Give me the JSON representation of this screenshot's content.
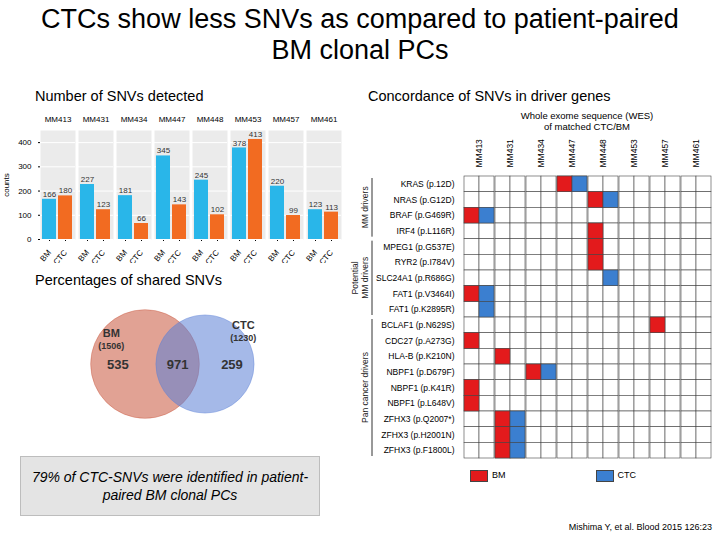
{
  "title": "CTCs show less SNVs as compared to patient-paired BM clonal PCs",
  "citation": "Mishima Y, et al. Blood 2015 126:23",
  "chart_data": [
    {
      "type": "bar",
      "title": "Number of SNVs detected",
      "categories": [
        "MM413",
        "MM431",
        "MM434",
        "MM447",
        "MM448",
        "MM453",
        "MM457",
        "MM461"
      ],
      "series": [
        {
          "name": "BM",
          "color": "#29b6e9",
          "values": [
            166,
            227,
            181,
            345,
            245,
            378,
            220,
            123
          ]
        },
        {
          "name": "CTC",
          "color": "#f26b21",
          "values": [
            180,
            123,
            66,
            143,
            102,
            413,
            99,
            113
          ]
        }
      ],
      "ylabel": "counts",
      "ylim": [
        0,
        450
      ],
      "yticks": [
        0,
        100,
        200,
        300,
        400
      ],
      "grid": true,
      "data_labels": true
    },
    {
      "type": "venn",
      "title": "Percentages of shared SNVs",
      "sets": [
        {
          "name": "BM",
          "size": 1506,
          "size_label": "(1506)",
          "color": "#c8553d"
        },
        {
          "name": "CTC",
          "size": 1230,
          "size_label": "(1230)",
          "color": "#5b80d6"
        }
      ],
      "only_first": 535,
      "shared": 971,
      "only_second": 259,
      "annotation": "79% of CTC-SNVs were identified in patient-paired BM clonal PCs"
    },
    {
      "type": "grid",
      "title": "Concordance of SNVs in driver genes",
      "subtitle": "Whole exome sequence (WES)\nof matched CTC/BM",
      "columns": [
        "MM413",
        "MM431",
        "MM434",
        "MM447",
        "MM448",
        "MM453",
        "MM457",
        "MM461"
      ],
      "rows": [
        "KRAS (p.12D)",
        "NRAS (p.G12D)",
        "BRAF (p.G469R)",
        "IRF4 (p.L116R)",
        "MPEG1 (p.G537E)",
        "RYR2 (p.I784V)",
        "SLC24A1 (p.R686G)",
        "FAT1 (p.V3464I)",
        "FAT1 (p.K2895R)",
        "BCLAF1 (p.N629S)",
        "CDC27 (p.A273G)",
        "HLA-B (p.K210N)",
        "NBPF1 (p.D679F)",
        "NBPF1 (p.K41R)",
        "NBPF1 (p.L648V)",
        "ZFHX3 (p.Q2007*)",
        "ZFHX3 (p.H2001N)",
        "ZFHX3 (p.F1800L)"
      ],
      "groups": [
        {
          "label": "MM drivers",
          "from": "KRAS (p.12D)",
          "to": "IRF4 (p.L116R)"
        },
        {
          "label": "Potential\nMM drivers",
          "from": "MPEG1 (p.G537E)",
          "to": "FAT1 (p.K2895R)"
        },
        {
          "label": "Pan cancer drivers",
          "from": "BCLAF1 (p.N629S)",
          "to": "ZFHX3 (p.F1800L)"
        }
      ],
      "series": [
        {
          "name": "BM",
          "color": "#e31a1c"
        },
        {
          "name": "CTC",
          "color": "#3b7fd0"
        }
      ],
      "cells": [
        {
          "row": "KRAS (p.12D)",
          "patient": "MM447",
          "sample": "BM"
        },
        {
          "row": "KRAS (p.12D)",
          "patient": "MM447",
          "sample": "CTC"
        },
        {
          "row": "NRAS (p.G12D)",
          "patient": "MM448",
          "sample": "BM"
        },
        {
          "row": "NRAS (p.G12D)",
          "patient": "MM448",
          "sample": "CTC"
        },
        {
          "row": "BRAF (p.G469R)",
          "patient": "MM413",
          "sample": "BM"
        },
        {
          "row": "BRAF (p.G469R)",
          "patient": "MM413",
          "sample": "CTC"
        },
        {
          "row": "IRF4 (p.L116R)",
          "patient": "MM448",
          "sample": "BM"
        },
        {
          "row": "MPEG1 (p.G537E)",
          "patient": "MM448",
          "sample": "BM"
        },
        {
          "row": "RYR2 (p.I784V)",
          "patient": "MM448",
          "sample": "BM"
        },
        {
          "row": "SLC24A1 (p.R686G)",
          "patient": "MM448",
          "sample": "CTC"
        },
        {
          "row": "FAT1 (p.V3464I)",
          "patient": "MM413",
          "sample": "BM"
        },
        {
          "row": "FAT1 (p.V3464I)",
          "patient": "MM413",
          "sample": "CTC"
        },
        {
          "row": "FAT1 (p.K2895R)",
          "patient": "MM413",
          "sample": "CTC"
        },
        {
          "row": "BCLAF1 (p.N629S)",
          "patient": "MM457",
          "sample": "BM"
        },
        {
          "row": "CDC27 (p.A273G)",
          "patient": "MM413",
          "sample": "BM"
        },
        {
          "row": "HLA-B (p.K210N)",
          "patient": "MM431",
          "sample": "BM"
        },
        {
          "row": "NBPF1 (p.D679F)",
          "patient": "MM434",
          "sample": "BM"
        },
        {
          "row": "NBPF1 (p.D679F)",
          "patient": "MM434",
          "sample": "CTC"
        },
        {
          "row": "NBPF1 (p.K41R)",
          "patient": "MM413",
          "sample": "BM"
        },
        {
          "row": "NBPF1 (p.L648V)",
          "patient": "MM413",
          "sample": "BM"
        },
        {
          "row": "ZFHX3 (p.Q2007*)",
          "patient": "MM431",
          "sample": "BM"
        },
        {
          "row": "ZFHX3 (p.Q2007*)",
          "patient": "MM431",
          "sample": "CTC"
        },
        {
          "row": "ZFHX3 (p.H2001N)",
          "patient": "MM431",
          "sample": "BM"
        },
        {
          "row": "ZFHX3 (p.H2001N)",
          "patient": "MM431",
          "sample": "CTC"
        },
        {
          "row": "ZFHX3 (p.F1800L)",
          "patient": "MM431",
          "sample": "BM"
        },
        {
          "row": "ZFHX3 (p.F1800L)",
          "patient": "MM431",
          "sample": "CTC"
        }
      ]
    }
  ]
}
